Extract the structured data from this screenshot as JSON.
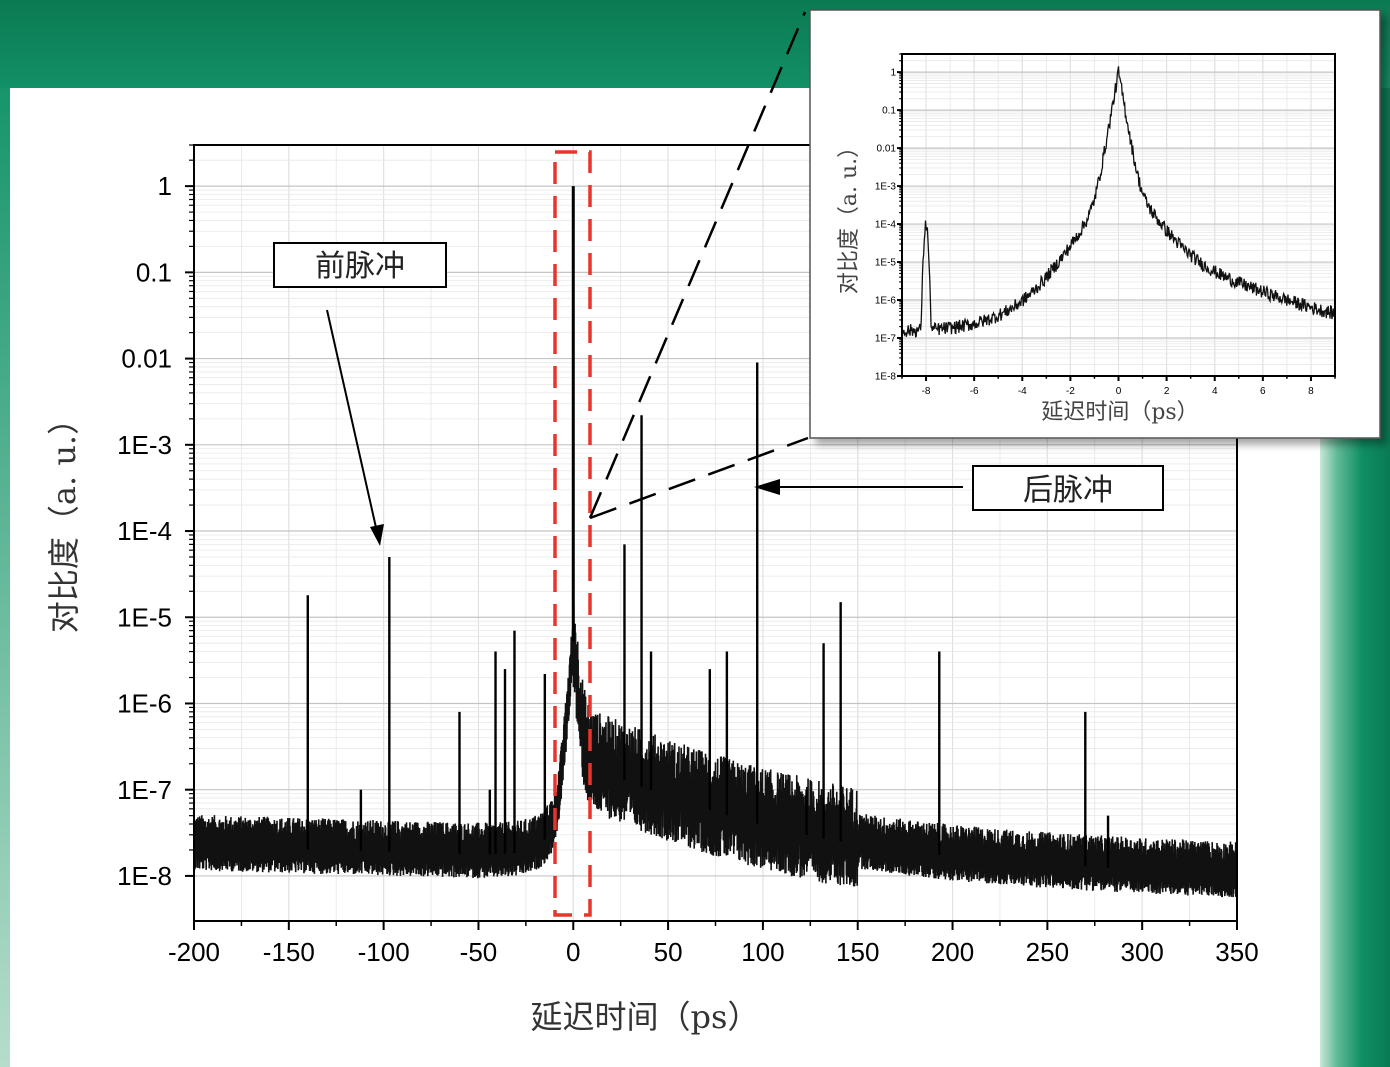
{
  "chart_data": [
    {
      "type": "line",
      "scale_y": "log",
      "xlabel": "延迟时间（ps）",
      "ylabel": "对比度（a. u.）",
      "xlim": [
        -200,
        350
      ],
      "ylim": [
        3e-09,
        3
      ],
      "x_ticks": [
        "-200",
        "-150",
        "-100",
        "-50",
        "0",
        "50",
        "100",
        "150",
        "200",
        "250",
        "300",
        "350"
      ],
      "y_ticks": [
        "1E-8",
        "1E-7",
        "1E-6",
        "1E-5",
        "1E-4",
        "1E-3",
        "0.01",
        "0.1",
        "1"
      ],
      "grid": true,
      "baseline": {
        "left": 2.2e-08,
        "right": 1e-08
      },
      "main_peak": {
        "x": 0,
        "y": 1
      },
      "spikes": [
        {
          "x": -140,
          "y": 1.8e-05
        },
        {
          "x": -112,
          "y": 1e-07
        },
        {
          "x": -97,
          "y": 5e-05
        },
        {
          "x": -60,
          "y": 8e-07
        },
        {
          "x": -44,
          "y": 1e-07
        },
        {
          "x": -41,
          "y": 4e-06
        },
        {
          "x": -36,
          "y": 2.5e-06
        },
        {
          "x": -31,
          "y": 7e-06
        },
        {
          "x": -15,
          "y": 2.2e-06
        },
        {
          "x": 27,
          "y": 7e-05
        },
        {
          "x": 36,
          "y": 0.0022
        },
        {
          "x": 41,
          "y": 4e-06
        },
        {
          "x": 72,
          "y": 2.5e-06
        },
        {
          "x": 81,
          "y": 4e-06
        },
        {
          "x": 97,
          "y": 0.009
        },
        {
          "x": 123,
          "y": 1e-07
        },
        {
          "x": 132,
          "y": 5e-06
        },
        {
          "x": 141,
          "y": 1.5e-05
        },
        {
          "x": 193,
          "y": 4e-06
        },
        {
          "x": 270,
          "y": 8e-07
        },
        {
          "x": 282,
          "y": 5e-08
        }
      ],
      "annotations": [
        {
          "text": "前脉冲",
          "x": -97
        },
        {
          "text": "后脉冲",
          "x": 97
        }
      ]
    },
    {
      "type": "line",
      "scale_y": "log",
      "xlabel": "延迟时间（ps）",
      "ylabel": "对比度（a. u.）",
      "xlim": [
        -9,
        9
      ],
      "ylim": [
        1e-08,
        3
      ],
      "x_ticks": [
        "-8",
        "-6",
        "-4",
        "-2",
        "0",
        "2",
        "4",
        "6",
        "8"
      ],
      "y_ticks": [
        "1E-8",
        "1E-7",
        "1E-6",
        "1E-5",
        "1E-4",
        "1E-3",
        "0.01",
        "0.1",
        "1"
      ],
      "grid": true,
      "main_peak": {
        "x": 0,
        "y": 1
      },
      "prepulse": {
        "x": -8,
        "y": 0.0001
      }
    }
  ]
}
